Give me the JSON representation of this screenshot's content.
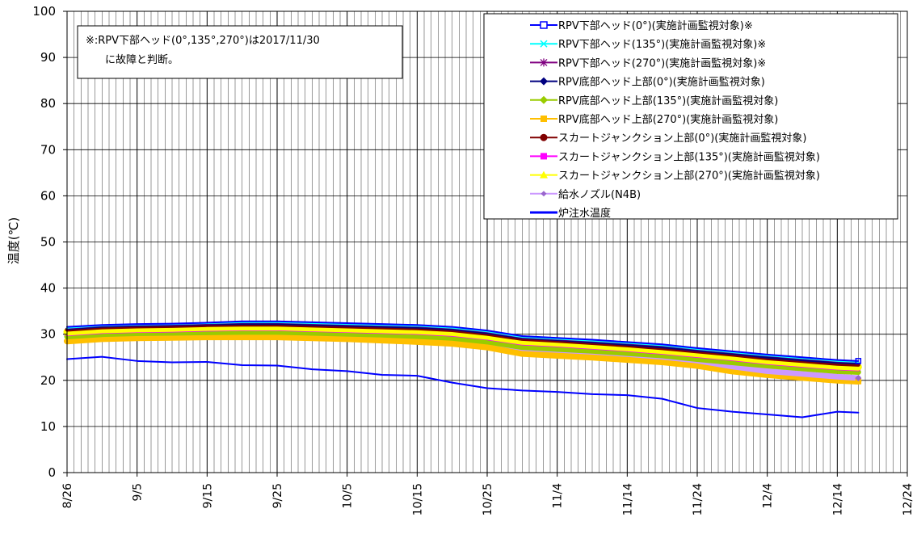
{
  "chart_data": {
    "type": "line",
    "ylabel": "温度(℃)",
    "ylim": [
      0,
      100
    ],
    "yticks": [
      0,
      10,
      20,
      30,
      40,
      50,
      60,
      70,
      80,
      90,
      100
    ],
    "xlim": [
      "8/26",
      "12/24"
    ],
    "xtick_labels": [
      "8/26",
      "9/5",
      "9/15",
      "9/25",
      "10/5",
      "10/15",
      "10/25",
      "11/4",
      "11/14",
      "11/24",
      "12/4",
      "12/14",
      "12/24"
    ],
    "x_unit": "days from 8/26",
    "grid": "vertical-daily",
    "legend_position": "top-right",
    "note": "※:RPV下部ヘッド(0°,135°,270°)は2017/11/30に故障と判断。",
    "note_lines": [
      "※:RPV下部ヘッド(0°,135°,270°)は2017/11/30",
      "に故障と判断。"
    ],
    "x": [
      0,
      5,
      10,
      15,
      20,
      25,
      30,
      35,
      40,
      45,
      50,
      55,
      60,
      65,
      70,
      75,
      80,
      85,
      90,
      95,
      100,
      105,
      110,
      113
    ],
    "series": [
      {
        "name": "RPV下部ヘッド(0°)(実施計画監視対象)※",
        "color": "#0000ff",
        "marker": "square-open",
        "values": [
          31.6,
          32.0,
          32.2,
          32.3,
          32.5,
          32.8,
          32.8,
          32.6,
          32.4,
          32.2,
          32.0,
          31.6,
          30.8,
          29.6,
          29.2,
          28.8,
          28.3,
          27.8,
          27.0,
          26.3,
          25.6,
          25.0,
          24.4,
          24.2
        ]
      },
      {
        "name": "RPV下部ヘッド(135°)(実施計画監視対象)※",
        "color": "#00ffff",
        "marker": "x",
        "values": [
          31.4,
          31.9,
          32.1,
          32.2,
          32.4,
          32.6,
          32.6,
          32.4,
          32.2,
          32.0,
          31.8,
          31.4,
          30.6,
          29.4,
          29.0,
          28.6,
          28.1,
          27.6,
          26.8,
          26.1,
          25.4,
          24.8,
          24.2,
          24.0
        ]
      },
      {
        "name": "RPV下部ヘッド(270°)(実施計画監視対象)※",
        "color": "#800080",
        "marker": "asterisk",
        "values": [
          31.3,
          31.8,
          32.0,
          32.1,
          32.3,
          32.5,
          32.5,
          32.3,
          32.1,
          31.9,
          31.7,
          31.3,
          30.5,
          29.3,
          28.9,
          28.5,
          28.0,
          27.5,
          26.7,
          26.0,
          25.3,
          24.7,
          24.1,
          23.9
        ]
      },
      {
        "name": "RPV底部ヘッド上部(0°)(実施計画監視対象)",
        "color": "#000080",
        "marker": "diamond",
        "values": [
          31.2,
          31.7,
          31.9,
          32.0,
          32.2,
          32.3,
          32.3,
          32.1,
          31.9,
          31.7,
          31.5,
          31.1,
          30.3,
          29.2,
          28.8,
          28.3,
          27.8,
          27.2,
          26.5,
          25.8,
          25.0,
          24.4,
          23.9,
          23.7
        ]
      },
      {
        "name": "RPV底部ヘッド上部(135°)(実施計画監視対象)",
        "color": "#99cc00",
        "marker": "diamond",
        "values": [
          29.5,
          30.0,
          30.2,
          30.3,
          30.4,
          30.5,
          30.5,
          30.3,
          30.1,
          29.9,
          29.6,
          29.2,
          28.4,
          27.2,
          26.8,
          26.4,
          25.9,
          25.4,
          24.6,
          23.9,
          23.2,
          22.6,
          22.0,
          21.8
        ]
      },
      {
        "name": "RPV底部ヘッド上部(270°)(実施計画監視対象)",
        "color": "#ffbf00",
        "marker": "square",
        "values": [
          28.5,
          29.0,
          29.2,
          29.3,
          29.4,
          29.4,
          29.4,
          29.2,
          29.0,
          28.7,
          28.4,
          28.0,
          27.2,
          25.8,
          25.4,
          25.0,
          24.5,
          24.0,
          23.2,
          22.0,
          21.2,
          20.6,
          20.0,
          19.8
        ]
      },
      {
        "name": "スカートジャンクション上部(0°)(実施計画監視対象)",
        "color": "#800000",
        "marker": "circle",
        "values": [
          31.0,
          31.5,
          31.7,
          31.8,
          32.0,
          32.1,
          32.1,
          31.9,
          31.7,
          31.5,
          31.3,
          30.9,
          30.1,
          29.0,
          28.6,
          28.1,
          27.6,
          27.0,
          26.3,
          25.6,
          24.8,
          24.2,
          23.6,
          23.4
        ]
      },
      {
        "name": "スカートジャンクション上部(135°)(実施計画監視対象)",
        "color": "#ff00ff",
        "marker": "square",
        "values": [
          30.2,
          30.7,
          30.9,
          31.0,
          31.2,
          31.3,
          31.3,
          31.1,
          30.9,
          30.7,
          30.5,
          30.1,
          29.3,
          28.2,
          27.8,
          27.3,
          26.8,
          26.2,
          25.5,
          24.8,
          24.0,
          23.4,
          22.8,
          22.6
        ]
      },
      {
        "name": "スカートジャンクション上部(270°)(実施計画監視対象)",
        "color": "#ffff00",
        "marker": "triangle",
        "values": [
          30.5,
          31.0,
          31.2,
          31.3,
          31.5,
          31.6,
          31.6,
          31.4,
          31.2,
          31.0,
          30.8,
          30.4,
          29.6,
          28.5,
          28.1,
          27.6,
          27.1,
          26.5,
          25.8,
          25.1,
          24.3,
          23.7,
          23.1,
          22.9
        ]
      },
      {
        "name": "給水ノズル(N4B)",
        "color": "#cc99ff",
        "marker": "diamond-small",
        "values": [
          29.6,
          30.2,
          30.5,
          30.6,
          30.7,
          30.7,
          30.7,
          30.5,
          30.3,
          30.0,
          29.7,
          29.3,
          28.5,
          27.0,
          26.6,
          26.2,
          25.7,
          25.1,
          24.3,
          23.0,
          22.0,
          21.4,
          20.8,
          20.5
        ]
      },
      {
        "name": "炉注水温度",
        "color": "#0000ff",
        "marker": "none",
        "values": [
          24.6,
          25.1,
          24.2,
          23.9,
          24.0,
          23.3,
          23.2,
          22.4,
          22.0,
          21.2,
          21.0,
          19.5,
          18.3,
          17.8,
          17.5,
          17.0,
          16.8,
          16.0,
          14.0,
          13.2,
          12.6,
          12.0,
          13.2,
          13.0
        ]
      }
    ]
  }
}
